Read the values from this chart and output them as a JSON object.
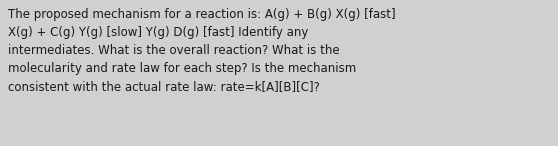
{
  "text": "The proposed mechanism for a reaction is: A(g) + B(g) X(g) [fast]\nX(g) + C(g) Y(g) [slow] Y(g) D(g) [fast] Identify any\nintermediates. What is the overall reaction? What is the\nmolecularity and rate law for each step? Is the mechanism\nconsistent with the actual rate law: rate=k[A][B][C]?",
  "background_color": "#d0d0d0",
  "text_color": "#1a1a1a",
  "font_size": 8.5,
  "fig_width": 5.58,
  "fig_height": 1.46,
  "dpi": 100
}
